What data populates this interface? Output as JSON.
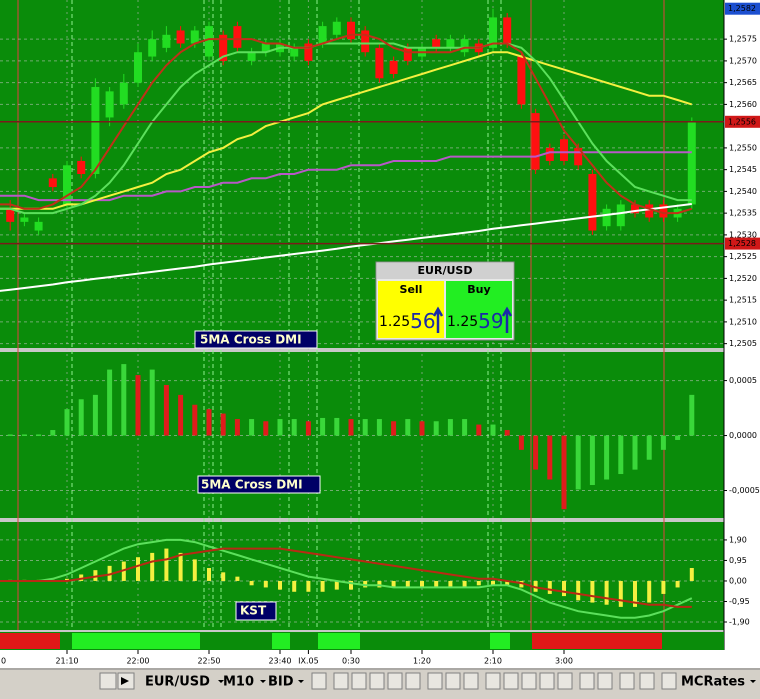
{
  "chart_data": [
    {
      "type": "candlestick",
      "categories": [
        "0",
        null,
        null,
        null,
        null,
        "21:10",
        null,
        null,
        null,
        null,
        "22:00",
        null,
        null,
        null,
        null,
        "22:50",
        null,
        null,
        null,
        null,
        "23:40",
        null,
        "IX.05",
        null,
        null,
        "0:30",
        null,
        null,
        null,
        null,
        "1:20",
        null,
        null,
        null,
        null,
        "2:10",
        null,
        null,
        null,
        null,
        "3:00",
        null,
        null,
        null,
        null,
        null,
        null,
        null,
        null,
        null
      ],
      "open": [
        1.2538,
        1.2536,
        1.2533,
        1.2531,
        1.2543,
        1.2537,
        1.2547,
        1.2544,
        1.2557,
        1.256,
        1.2565,
        1.2571,
        1.2573,
        1.2577,
        1.2574,
        1.2571,
        1.2576,
        1.2578,
        1.257,
        1.2572,
        1.2572,
        1.2571,
        1.2574,
        1.2574,
        1.2576,
        1.2579,
        1.2577,
        1.2573,
        1.257,
        1.2573,
        1.2571,
        1.2575,
        1.2573,
        1.2572,
        1.2574,
        1.2573,
        1.258,
        1.2571,
        1.2558,
        1.255,
        1.2552,
        1.255,
        1.2544,
        1.2532,
        1.2532,
        1.2537,
        1.2537,
        1.2537,
        1.2534,
        1.2537
      ],
      "close": [
        1.2535,
        1.2533,
        1.2534,
        1.2533,
        1.2541,
        1.2546,
        1.2544,
        1.2564,
        1.2563,
        1.2565,
        1.2572,
        1.2575,
        1.2576,
        1.2574,
        1.2577,
        1.2578,
        1.257,
        1.2573,
        1.2572,
        1.2574,
        1.2574,
        1.2573,
        1.257,
        1.2578,
        1.2579,
        1.2575,
        1.2572,
        1.2566,
        1.2567,
        1.257,
        1.2573,
        1.2573,
        1.2575,
        1.2575,
        1.2572,
        1.258,
        1.2574,
        1.256,
        1.2545,
        1.2547,
        1.2547,
        1.2546,
        1.2531,
        1.2536,
        1.2537,
        1.2535,
        1.2534,
        1.2534,
        1.2536,
        1.2556
      ],
      "high": [
        1.2539,
        1.2538,
        1.2535,
        1.2534,
        1.2544,
        1.2547,
        1.2548,
        1.2566,
        1.2564,
        1.2567,
        1.2574,
        1.2577,
        1.2578,
        1.2578,
        1.2578,
        1.2579,
        1.2577,
        1.2579,
        1.2573,
        1.2575,
        1.2575,
        1.2574,
        1.2575,
        1.2579,
        1.258,
        1.258,
        1.2578,
        1.2574,
        1.2571,
        1.2574,
        1.2574,
        1.2576,
        1.2576,
        1.2576,
        1.2575,
        1.2582,
        1.2581,
        1.2572,
        1.2559,
        1.2551,
        1.2553,
        1.2551,
        1.2545,
        1.2537,
        1.2538,
        1.2538,
        1.2538,
        1.2538,
        1.2537,
        1.2557
      ],
      "low": [
        1.2534,
        1.2531,
        1.2532,
        1.253,
        1.254,
        1.2536,
        1.2543,
        1.2543,
        1.2555,
        1.2559,
        1.2564,
        1.257,
        1.2572,
        1.2573,
        1.2573,
        1.257,
        1.2569,
        1.2572,
        1.2569,
        1.2571,
        1.2571,
        1.257,
        1.2569,
        1.2573,
        1.2575,
        1.2574,
        1.2571,
        1.2565,
        1.2566,
        1.2569,
        1.257,
        1.2572,
        1.2572,
        1.2571,
        1.2571,
        1.2572,
        1.2573,
        1.2559,
        1.2544,
        1.2546,
        1.2546,
        1.2545,
        1.253,
        1.2531,
        1.2531,
        1.2534,
        1.2533,
        1.2533,
        1.2533,
        1.2536
      ],
      "up_color": "#22dd22",
      "down_color": "#ff1010",
      "series": [
        {
          "color": "#ffffff",
          "values": [
            1.2517,
            1.25174,
            1.25178,
            1.25182,
            1.25186,
            1.25191,
            1.25195,
            1.25199,
            1.25203,
            1.25207,
            1.25211,
            1.25215,
            1.25219,
            1.25223,
            1.25227,
            1.25232,
            1.25236,
            1.2524,
            1.25244,
            1.25248,
            1.25252,
            1.25256,
            1.2526,
            1.25264,
            1.25268,
            1.25273,
            1.25277,
            1.25281,
            1.25285,
            1.25289,
            1.25293,
            1.25297,
            1.25301,
            1.25305,
            1.25309,
            1.25314,
            1.25318,
            1.25322,
            1.25326,
            1.2533,
            1.25334,
            1.25338,
            1.25342,
            1.25346,
            1.2535,
            1.25355,
            1.25359,
            1.25363,
            1.25367,
            1.25371
          ]
        },
        {
          "color": "#b858c8",
          "values": [
            1.2539,
            1.2539,
            1.2539,
            1.2538,
            1.2538,
            1.2538,
            1.2538,
            1.2538,
            1.2538,
            1.2539,
            1.2539,
            1.2539,
            1.254,
            1.254,
            1.2541,
            1.2541,
            1.2542,
            1.2542,
            1.2543,
            1.2543,
            1.2544,
            1.2544,
            1.2545,
            1.2545,
            1.2545,
            1.2546,
            1.2546,
            1.2546,
            1.2547,
            1.2547,
            1.2547,
            1.2547,
            1.2548,
            1.2548,
            1.2548,
            1.2548,
            1.2548,
            1.2548,
            1.2548,
            1.2549,
            1.2549,
            1.2549,
            1.2549,
            1.2549,
            1.2549,
            1.2549,
            1.2549,
            1.2549,
            1.2549,
            1.2549
          ]
        },
        {
          "color": "#f4f040",
          "values": [
            1.2536,
            1.2536,
            1.2536,
            1.2536,
            1.2536,
            1.2537,
            1.2537,
            1.2538,
            1.2539,
            1.254,
            1.2541,
            1.2542,
            1.2544,
            1.2545,
            1.2547,
            1.2549,
            1.255,
            1.2552,
            1.2553,
            1.2555,
            1.2556,
            1.2557,
            1.2558,
            1.256,
            1.2561,
            1.2562,
            1.2563,
            1.2564,
            1.2565,
            1.2566,
            1.2567,
            1.2568,
            1.2569,
            1.257,
            1.2571,
            1.2572,
            1.2572,
            1.2571,
            1.257,
            1.2569,
            1.2568,
            1.2567,
            1.2566,
            1.2565,
            1.2564,
            1.2563,
            1.2562,
            1.2562,
            1.2561,
            1.256
          ]
        },
        {
          "color": "#5ce05c",
          "values": [
            1.2536,
            1.2536,
            1.2535,
            1.2535,
            1.2535,
            1.2536,
            1.2537,
            1.2539,
            1.2542,
            1.2546,
            1.2551,
            1.2556,
            1.256,
            1.2564,
            1.2567,
            1.2569,
            1.2571,
            1.2572,
            1.2572,
            1.2572,
            1.2573,
            1.2573,
            1.2573,
            1.2574,
            1.2574,
            1.2574,
            1.2574,
            1.2574,
            1.2574,
            1.2573,
            1.2573,
            1.2573,
            1.2573,
            1.2573,
            1.2573,
            1.2574,
            1.2574,
            1.2573,
            1.257,
            1.2566,
            1.2561,
            1.2556,
            1.2551,
            1.2547,
            1.2544,
            1.2541,
            1.254,
            1.2539,
            1.2538,
            1.2538
          ]
        },
        {
          "color": "#c03018",
          "values": [
            1.2537,
            1.2537,
            1.2536,
            1.2536,
            1.2537,
            1.2539,
            1.2541,
            1.2545,
            1.255,
            1.2555,
            1.256,
            1.2565,
            1.2569,
            1.2572,
            1.2574,
            1.2575,
            1.2575,
            1.2575,
            1.2575,
            1.2574,
            1.2574,
            1.2573,
            1.2573,
            1.2574,
            1.2575,
            1.2576,
            1.2576,
            1.2575,
            1.2573,
            1.2572,
            1.2572,
            1.2572,
            1.2572,
            1.2573,
            1.2573,
            1.2574,
            1.2574,
            1.2572,
            1.2566,
            1.256,
            1.2554,
            1.255,
            1.2546,
            1.2542,
            1.2539,
            1.2537,
            1.2536,
            1.2535,
            1.2535,
            1.2536
          ]
        }
      ],
      "ylim": [
        1.2504,
        1.2584
      ],
      "yticks": [
        {
          "value": 1.2505,
          "label": "1,2505"
        },
        {
          "value": 1.251,
          "label": "1,2510"
        },
        {
          "value": 1.2515,
          "label": "1,2515"
        },
        {
          "value": 1.252,
          "label": "1,2520"
        },
        {
          "value": 1.2525,
          "label": "1,2525"
        },
        {
          "value": 1.253,
          "label": "1,2530"
        },
        {
          "value": 1.2535,
          "label": "1,2535"
        },
        {
          "value": 1.254,
          "label": "1,2540"
        },
        {
          "value": 1.2545,
          "label": "1,2545"
        },
        {
          "value": 1.255,
          "label": "1,2550"
        },
        {
          "value": 1.256,
          "label": "1,2560"
        },
        {
          "value": 1.2565,
          "label": "1,2565"
        },
        {
          "value": 1.257,
          "label": "1,2570"
        },
        {
          "value": 1.2575,
          "label": "1,2575"
        }
      ],
      "markers": [
        {
          "value": 1.2582,
          "label": "1,2582",
          "color": "#1c4fd0",
          "line": false
        },
        {
          "value": 1.2556,
          "label": "1,2556",
          "color": "#d01818",
          "line": true
        },
        {
          "value": 1.2528,
          "label": "1,2528",
          "color": "#d01818",
          "line": true
        }
      ],
      "grid": true,
      "annotation": "5MA Cross DMI"
    },
    {
      "type": "bar",
      "values": [
        1e-05,
        1e-05,
        1e-05,
        1e-05,
        5e-05,
        0.00024,
        0.00033,
        0.00037,
        0.0006,
        0.00065,
        0.00055,
        0.0006,
        0.00046,
        0.00037,
        0.00028,
        0.00024,
        0.0002,
        0.00015,
        0.00015,
        0.00013,
        0.00015,
        0.00015,
        0.00013,
        0.00016,
        0.00016,
        0.00015,
        0.00015,
        0.00015,
        0.00013,
        0.00015,
        0.00013,
        0.00013,
        0.00015,
        0.00015,
        0.0001,
        0.0001,
        5e-05,
        -0.00013,
        -0.00031,
        -0.0004,
        -0.00067,
        -0.00049,
        -0.00045,
        -0.0004,
        -0.00035,
        -0.00031,
        -0.00022,
        -0.00013,
        -4e-05,
        0.00037
      ],
      "rising_color": "#3ad83a",
      "falling_color": "#e01c1c",
      "ylim": [
        -0.00075,
        0.00076
      ],
      "yticks": [
        {
          "value": 0.0005,
          "label": "0,0005"
        },
        {
          "value": 0,
          "label": "0,0000"
        },
        {
          "value": -0.0005,
          "label": "-0,0005"
        }
      ],
      "grid": true,
      "annotation": "5MA Cross DMI"
    },
    {
      "type": "bar",
      "series": [
        {
          "type": "bar",
          "color": "#f4f040",
          "values": [
            0.05,
            0.05,
            0.05,
            0.05,
            0.05,
            0.1,
            0.3,
            0.5,
            0.7,
            0.9,
            1.1,
            1.3,
            1.5,
            1.3,
            1,
            0.6,
            0.4,
            0.2,
            -0.2,
            -0.3,
            -0.4,
            -0.5,
            -0.5,
            -0.5,
            -0.4,
            -0.4,
            -0.3,
            -0.3,
            -0.3,
            -0.3,
            -0.3,
            -0.3,
            -0.3,
            -0.3,
            -0.2,
            -0.2,
            -0.2,
            -0.3,
            -0.5,
            -0.6,
            -0.7,
            -0.9,
            -1,
            -1.1,
            -1.2,
            -1.2,
            -1,
            -0.6,
            -0.3,
            0.6
          ]
        },
        {
          "type": "line",
          "color": "#5ce05c",
          "values": [
            0,
            0,
            0,
            0,
            0.1,
            0.3,
            0.6,
            0.9,
            1.2,
            1.5,
            1.7,
            1.8,
            1.9,
            1.9,
            1.8,
            1.6,
            1.4,
            1.2,
            1,
            0.8,
            0.6,
            0.4,
            0.2,
            0.1,
            0,
            -0.1,
            -0.2,
            -0.2,
            -0.3,
            -0.3,
            -0.3,
            -0.3,
            -0.3,
            -0.3,
            -0.3,
            -0.2,
            -0.2,
            -0.4,
            -0.7,
            -1,
            -1.2,
            -1.4,
            -1.5,
            -1.6,
            -1.7,
            -1.7,
            -1.6,
            -1.4,
            -1.1,
            -0.8
          ]
        },
        {
          "type": "line",
          "color": "#b82a14",
          "values": [
            0,
            0,
            0,
            0,
            0,
            0,
            0.1,
            0.2,
            0.3,
            0.5,
            0.7,
            0.9,
            1,
            1.2,
            1.3,
            1.4,
            1.5,
            1.5,
            1.5,
            1.5,
            1.5,
            1.4,
            1.3,
            1.2,
            1.1,
            1,
            0.9,
            0.8,
            0.7,
            0.6,
            0.5,
            0.4,
            0.3,
            0.2,
            0.1,
            0.1,
            0,
            -0.1,
            -0.3,
            -0.4,
            -0.5,
            -0.6,
            -0.7,
            -0.8,
            -0.9,
            -1,
            -1.1,
            -1.1,
            -1.2,
            -1.2
          ]
        }
      ],
      "ylim": [
        -2.27,
        2.73
      ],
      "yticks": [
        {
          "value": 1.9,
          "label": "1,90"
        },
        {
          "value": 0.95,
          "label": "0,95"
        },
        {
          "value": 0,
          "label": "0,00"
        },
        {
          "value": -0.95,
          "label": "-0,95"
        },
        {
          "value": -1.9,
          "label": "-1,90"
        }
      ],
      "grid": true,
      "annotation": "KST"
    }
  ],
  "widget": {
    "symbol": "EUR/USD",
    "sell": {
      "label": "Sell",
      "price": "1.25",
      "pips": "56"
    },
    "buy": {
      "label": "Buy",
      "price": "1.25",
      "pips": "59"
    }
  },
  "toolbar": {
    "symbol": "EUR/USD",
    "period": "M10",
    "price": "BID",
    "template": "MCRates"
  }
}
